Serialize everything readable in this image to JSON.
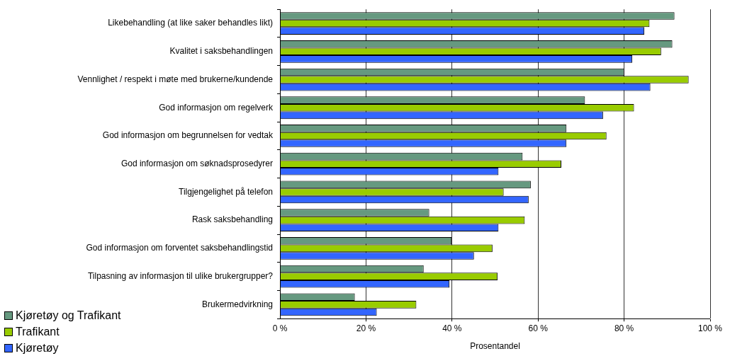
{
  "chart_data": {
    "type": "bar",
    "orientation": "horizontal",
    "xlabel": "Prosentandel",
    "categories": [
      "Likebehandling (at like saker behandles likt)",
      "Kvalitet i saksbehandlingen",
      "Vennlighet / respekt i møte med brukerne/kundende",
      "God informasjon om regelverk",
      "God informasjon om begrunnelsen for vedtak",
      "God informasjon om søknadsprosedyrer",
      "Tilgjengelighet på telefon",
      "Rask saksbehandling",
      "God informasjon om forventet saksbehandlingstid",
      "Tilpasning av informasjon til ulike brukergrupper?",
      "Brukermedvirkning"
    ],
    "series": [
      {
        "name": "Kjøretøy og Trafikant",
        "color": "#669980",
        "values": [
          91.7,
          91.2,
          80.0,
          70.9,
          66.6,
          56.4,
          58.3,
          34.7,
          39.9,
          33.4,
          17.4
        ]
      },
      {
        "name": "Trafikant",
        "color": "#99cc00",
        "values": [
          85.9,
          88.6,
          95.0,
          82.3,
          75.9,
          65.4,
          52.0,
          56.9,
          49.4,
          50.6,
          31.7
        ]
      },
      {
        "name": "Kjøretøy",
        "color": "#3366ff",
        "values": [
          84.7,
          81.9,
          86.1,
          75.1,
          66.6,
          50.8,
          57.8,
          50.8,
          45.1,
          39.4,
          22.5
        ]
      }
    ],
    "xlim": [
      0,
      100
    ],
    "xticks": [
      {
        "value": 0,
        "label": "0 %"
      },
      {
        "value": 20,
        "label": "20 %"
      },
      {
        "value": 40,
        "label": "40 %"
      },
      {
        "value": 60,
        "label": "60 %"
      },
      {
        "value": 80,
        "label": "80 %"
      },
      {
        "value": 100,
        "label": "100 %"
      }
    ],
    "grid": "x",
    "legend": "bottom left"
  }
}
